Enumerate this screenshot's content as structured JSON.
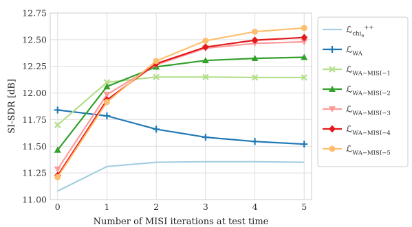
{
  "chart_data": {
    "type": "line",
    "title": "",
    "xlabel": "Number of MISI iterations at test time",
    "ylabel": "SI-SDR [dB]",
    "x": [
      0,
      1,
      2,
      3,
      4,
      5
    ],
    "xticks": [
      "0",
      "1",
      "2",
      "3",
      "4",
      "5"
    ],
    "xlim": [
      -0.15,
      5.15
    ],
    "ylim": [
      11.0,
      12.75
    ],
    "yticks": [
      "11.00",
      "11.25",
      "11.50",
      "11.75",
      "12.00",
      "12.25",
      "12.50",
      "12.75"
    ],
    "grid": true,
    "legend_position": "outside-right",
    "series": [
      {
        "name": "ℒ",
        "sub": "chi",
        "subsub": "a",
        "sup": "++",
        "color": "#a6cee3",
        "marker": "none",
        "values": [
          11.08,
          11.31,
          11.35,
          11.355,
          11.355,
          11.35
        ]
      },
      {
        "name": "ℒ",
        "sub": "WA",
        "color": "#1f78b4",
        "marker": "plus",
        "values": [
          11.84,
          11.785,
          11.66,
          11.585,
          11.545,
          11.52
        ]
      },
      {
        "name": "ℒ",
        "sub": "WA−MISI−1",
        "color": "#b2df8a",
        "marker": "x",
        "values": [
          11.7,
          12.1,
          12.15,
          12.15,
          12.145,
          12.145
        ]
      },
      {
        "name": "ℒ",
        "sub": "WA−MISI−2",
        "color": "#33a02c",
        "marker": "triangle",
        "values": [
          11.465,
          12.06,
          12.245,
          12.305,
          12.325,
          12.335
        ]
      },
      {
        "name": "ℒ",
        "sub": "WA−MISI−3",
        "color": "#fb9a99",
        "marker": "triangle-down",
        "values": [
          11.285,
          11.985,
          12.265,
          12.42,
          12.465,
          12.48
        ]
      },
      {
        "name": "ℒ",
        "sub": "WA−MISI−4",
        "color": "#e31a1c",
        "marker": "diamond",
        "values": [
          11.225,
          11.935,
          12.275,
          12.43,
          12.495,
          12.52
        ]
      },
      {
        "name": "ℒ",
        "sub": "WA−MISI−5",
        "color": "#fdbf6f",
        "marker": "circle",
        "values": [
          11.21,
          11.915,
          12.3,
          12.49,
          12.575,
          12.61
        ]
      }
    ]
  }
}
